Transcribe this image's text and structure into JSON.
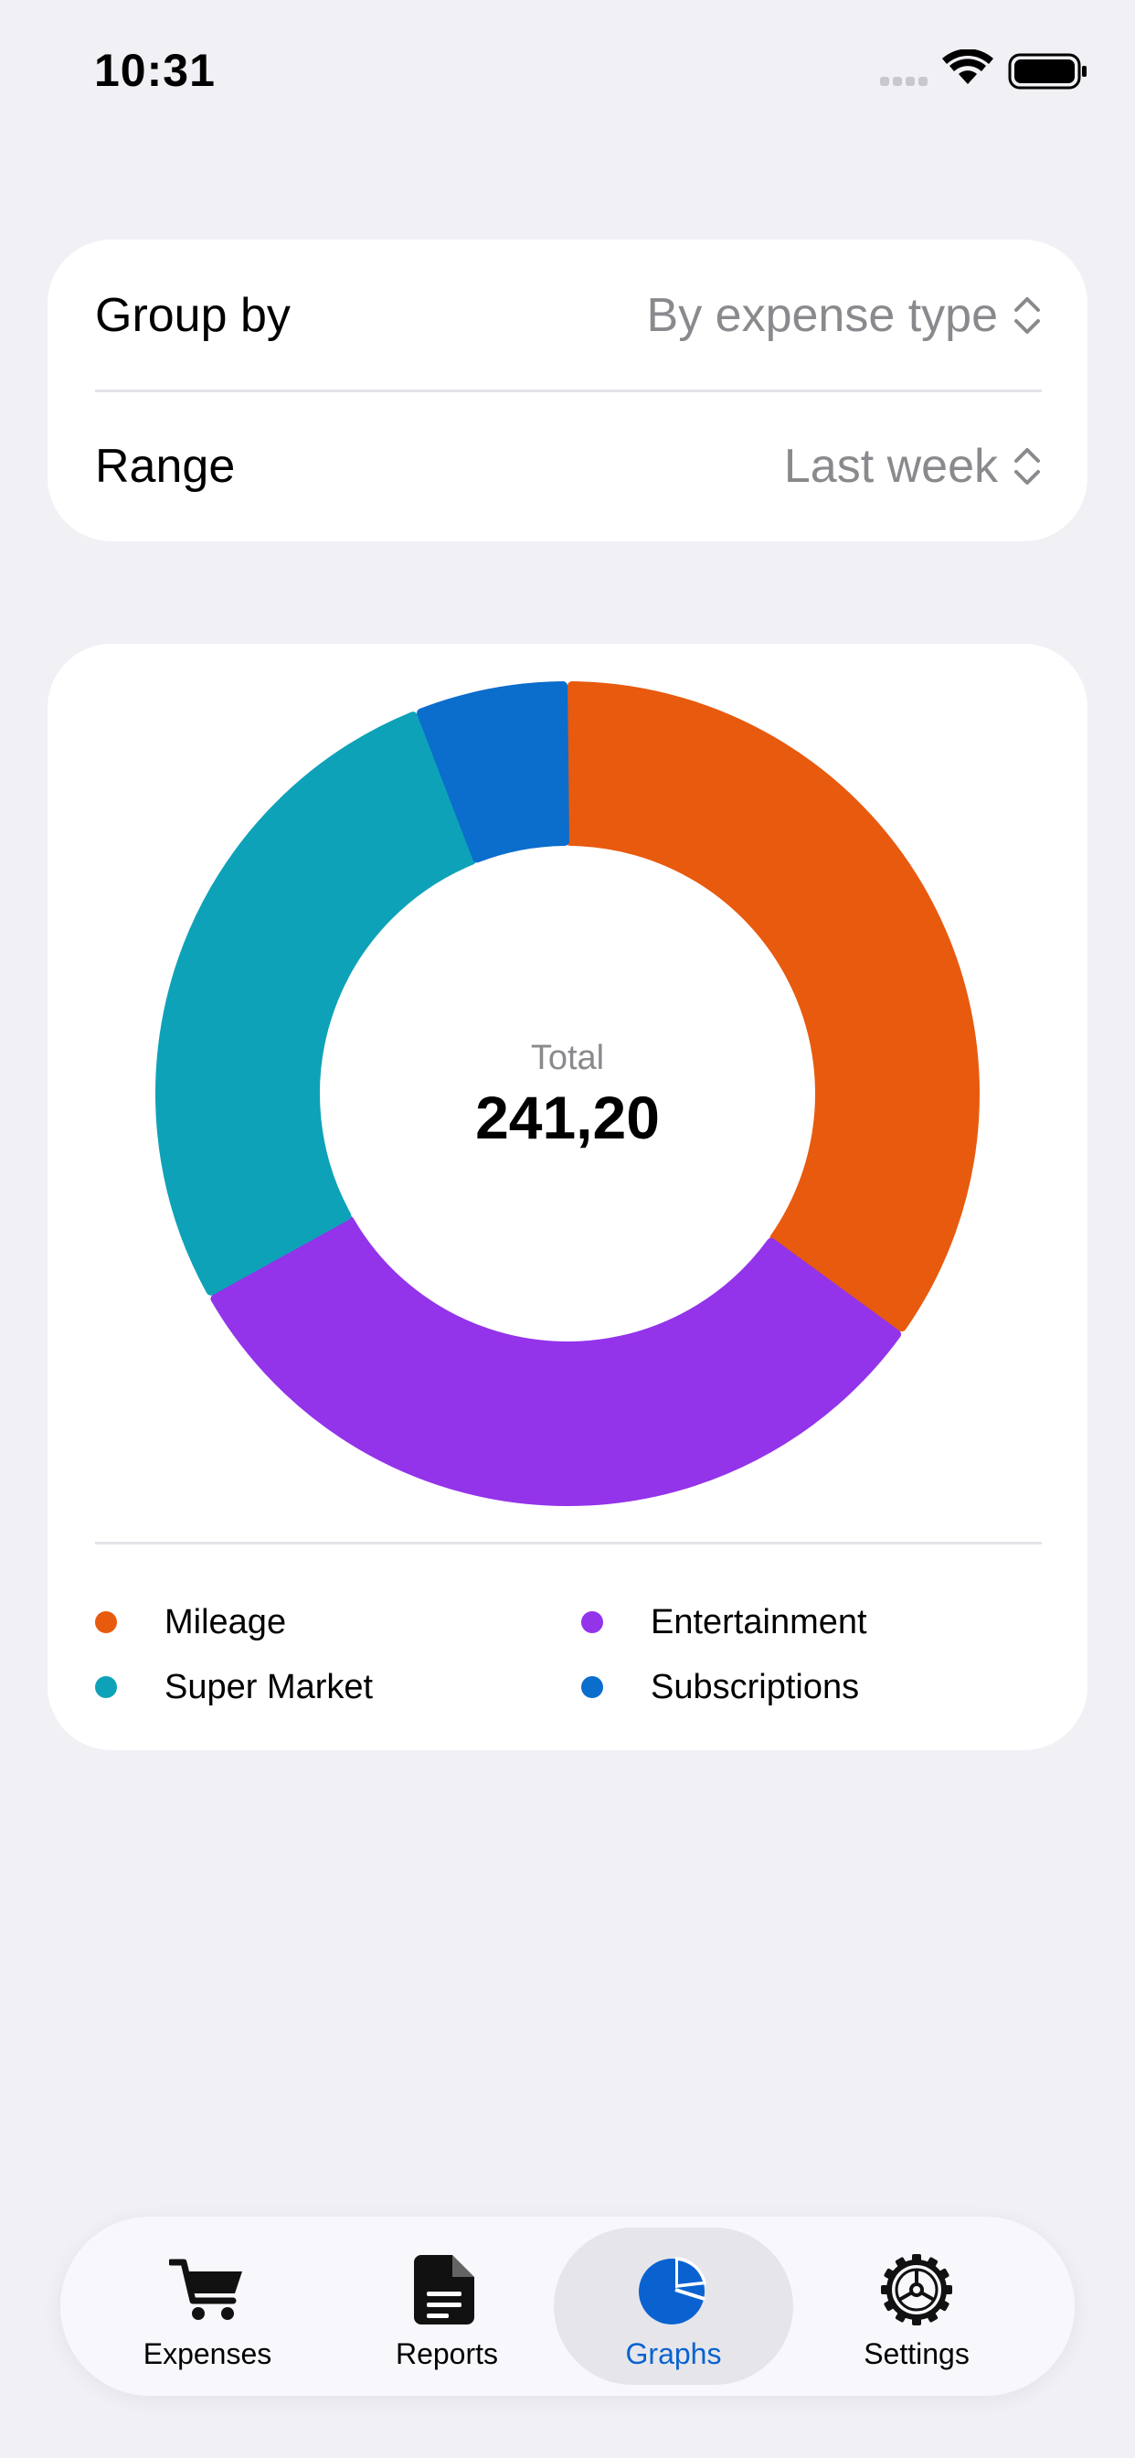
{
  "status_bar": {
    "time": "10:31"
  },
  "filters": {
    "group_by": {
      "label": "Group by",
      "value": "By expense type"
    },
    "range": {
      "label": "Range",
      "value": "Last week"
    }
  },
  "summary": {
    "total_label": "Total",
    "total_value": "241,20"
  },
  "chart_data": {
    "type": "pie",
    "categories": [
      "Mileage",
      "Entertainment",
      "Super Market",
      "Subscriptions"
    ],
    "values": [
      84.1,
      77.0,
      65.6,
      14.5
    ],
    "colors": [
      "#e85a0e",
      "#9333ea",
      "#0ea2b8",
      "#0b6dcc"
    ],
    "legend": "bottom"
  },
  "legend": {
    "items": [
      {
        "label": "Mileage",
        "color": "#e85a0e"
      },
      {
        "label": "Entertainment",
        "color": "#9333ea"
      },
      {
        "label": "Super Market",
        "color": "#0ea2b8"
      },
      {
        "label": "Subscriptions",
        "color": "#0b6dcc"
      }
    ]
  },
  "tab_bar": {
    "tabs": [
      {
        "label": "Expenses",
        "icon": "cart-icon",
        "selected": false
      },
      {
        "label": "Reports",
        "icon": "document-icon",
        "selected": false
      },
      {
        "label": "Graphs",
        "icon": "pie-chart-icon",
        "selected": true
      },
      {
        "label": "Settings",
        "icon": "gear-icon",
        "selected": false
      }
    ],
    "accent_color": "#0a62d0"
  }
}
